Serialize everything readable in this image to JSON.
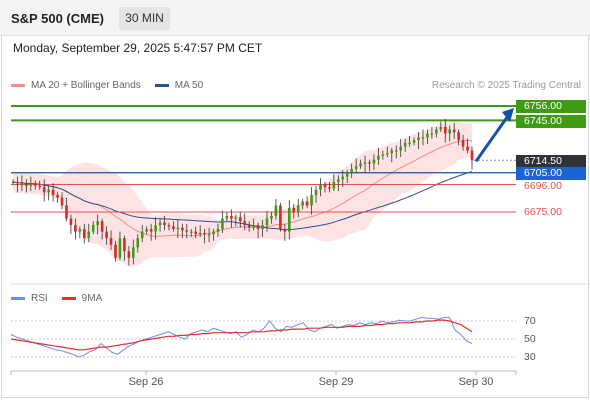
{
  "header": {
    "symbol": "S&P 500 (CME)",
    "timeframe": "30 MIN",
    "datetime": "Monday, September 29, 2025 5:47:57 PM CET",
    "credit": "Research © 2025 Trading Central"
  },
  "legend": {
    "bb_label": "MA 20 + Bollinger Bands",
    "ma50_label": "MA 50",
    "bb_color": "#f28c8c",
    "ma50_color": "#2b4f93"
  },
  "rsi_legend": {
    "rsi_label": "RSI",
    "ma_label": "9MA",
    "rsi_color": "#6f8fe0",
    "ma_color": "#e23030"
  },
  "price_labels": {
    "target2": "6756.00",
    "target1": "6745.00",
    "last": "6714.50",
    "pivot": "6705.00",
    "support1": "6696.00",
    "support2": "6675.00"
  },
  "rsi_ticks": [
    "70",
    "50",
    "30"
  ],
  "x_labels": [
    "Sep 26",
    "Sep 29",
    "Sep 30"
  ],
  "colors": {
    "up": "#3f9a14",
    "down": "#d42a2a",
    "resistance": "#3f9a14",
    "pivot": "#1a4fa8",
    "support": "#e55050",
    "arrow": "#1a4fa8",
    "band_fill": "#fde0e0"
  },
  "chart_data": [
    {
      "type": "candlestick",
      "title": "S&P 500 (CME)",
      "interval": "30 MIN",
      "ylim": [
        6620,
        6770
      ],
      "x_ticks": [
        "Sep 26",
        "Sep 29",
        "Sep 30"
      ],
      "levels": {
        "resistance": [
          6756.0,
          6745.0
        ],
        "pivot": 6705.0,
        "support": [
          6696.0,
          6675.0
        ],
        "last": 6714.5
      },
      "close": [
        6698,
        6697,
        6697,
        6695,
        6697,
        6695,
        6694,
        6690,
        6692,
        6688,
        6686,
        6680,
        6670,
        6665,
        6660,
        6662,
        6655,
        6660,
        6665,
        6668,
        6660,
        6655,
        6650,
        6640,
        6655,
        6645,
        6640,
        6648,
        6655,
        6660,
        6662,
        6660,
        6665,
        6667,
        6665,
        6664,
        6662,
        6663,
        6661,
        6660,
        6660,
        6658,
        6659,
        6658,
        6658,
        6660,
        6662,
        6670,
        6672,
        6670,
        6671,
        6668,
        6665,
        6663,
        6665,
        6662,
        6665,
        6670,
        6672,
        6680,
        6662,
        6660,
        6678,
        6675,
        6680,
        6683,
        6680,
        6688,
        6692,
        6696,
        6694,
        6693,
        6698,
        6700,
        6702,
        6705,
        6708,
        6710,
        6712,
        6713,
        6712,
        6715,
        6718,
        6719,
        6720,
        6722,
        6722,
        6725,
        6728,
        6728,
        6730,
        6732,
        6732,
        6735,
        6735,
        6738,
        6740,
        6735,
        6738,
        6736,
        6730,
        6725,
        6722,
        6714.5
      ],
      "series": [
        {
          "name": "MA 20 + Bollinger Bands",
          "type": "band"
        },
        {
          "name": "MA 50",
          "type": "line"
        }
      ]
    },
    {
      "type": "line",
      "title": "RSI",
      "ylim": [
        20,
        80
      ],
      "y_ticks": [
        70,
        50,
        30
      ],
      "series": [
        {
          "name": "RSI",
          "values": [
            55,
            52,
            50,
            48,
            46,
            44,
            42,
            40,
            38,
            37,
            35,
            33,
            30,
            32,
            36,
            38,
            45,
            40,
            35,
            33,
            38,
            42,
            45,
            48,
            50,
            52,
            54,
            56,
            58,
            55,
            52,
            50,
            56,
            58,
            60,
            58,
            62,
            60,
            58,
            56,
            58,
            52,
            55,
            60,
            58,
            62,
            70,
            62,
            58,
            64,
            63,
            66,
            68,
            60,
            58,
            62,
            64,
            66,
            62,
            64,
            66,
            65,
            68,
            66,
            68,
            67,
            70,
            68,
            69,
            71,
            70,
            70,
            72,
            74,
            73,
            73,
            72,
            74,
            74,
            60,
            55,
            48,
            45
          ]
        },
        {
          "name": "9MA",
          "values": [
            50,
            49,
            48,
            47,
            46,
            45,
            44,
            43,
            42,
            41,
            40,
            39,
            38,
            38,
            39,
            40,
            41,
            41,
            42,
            43,
            44,
            45,
            46,
            48,
            49,
            50,
            51,
            52,
            53,
            53,
            54,
            54,
            55,
            55,
            56,
            56,
            57,
            57,
            57,
            57,
            57,
            57,
            57,
            58,
            58,
            58,
            59,
            59,
            60,
            60,
            61,
            61,
            61,
            62,
            62,
            62,
            63,
            63,
            63,
            63,
            64,
            64,
            64,
            65,
            65,
            66,
            66,
            67,
            67,
            68,
            68,
            68,
            69,
            69,
            70,
            70,
            71,
            71,
            70,
            68,
            66,
            62,
            58
          ]
        }
      ]
    }
  ]
}
